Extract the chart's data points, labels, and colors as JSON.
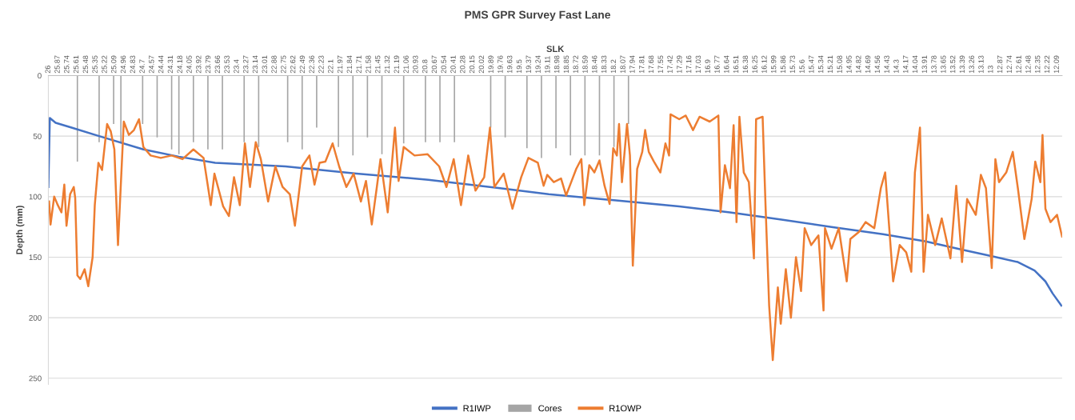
{
  "chart_data": {
    "type": "line",
    "title": "PMS GPR Survey Fast Lane",
    "xlabel": "SLK",
    "ylabel": "Depth (mm)",
    "xlim": [
      26,
      12.02
    ],
    "ylim": [
      255,
      0
    ],
    "yticks": [
      0,
      50,
      100,
      150,
      200,
      250
    ],
    "xticks": [
      26,
      25.87,
      25.74,
      25.61,
      25.48,
      25.35,
      25.22,
      25.09,
      24.96,
      24.83,
      24.7,
      24.57,
      24.44,
      24.31,
      24.18,
      24.05,
      23.92,
      23.79,
      23.66,
      23.53,
      23.4,
      23.27,
      23.14,
      23.01,
      22.88,
      22.75,
      22.62,
      22.49,
      22.36,
      22.23,
      22.1,
      21.97,
      21.84,
      21.71,
      21.58,
      21.45,
      21.32,
      21.19,
      21.06,
      20.93,
      20.8,
      20.67,
      20.54,
      20.41,
      20.28,
      20.15,
      20.02,
      19.89,
      19.76,
      19.63,
      19.5,
      19.37,
      19.24,
      19.11,
      18.98,
      18.85,
      18.72,
      18.59,
      18.46,
      18.33,
      18.2,
      18.07,
      17.94,
      17.81,
      17.68,
      17.55,
      17.42,
      17.29,
      17.16,
      17.03,
      16.9,
      16.77,
      16.64,
      16.51,
      16.38,
      16.25,
      16.12,
      15.99,
      15.86,
      15.73,
      15.6,
      15.47,
      15.34,
      15.21,
      15.08,
      14.95,
      14.82,
      14.69,
      14.56,
      14.43,
      14.3,
      14.17,
      14.04,
      13.91,
      13.78,
      13.65,
      13.52,
      13.39,
      13.26,
      13.13,
      13,
      12.87,
      12.74,
      12.61,
      12.48,
      12.35,
      12.22,
      12.09
    ],
    "grid": "y",
    "legend": "bottom",
    "series": [
      {
        "name": "R1IWP",
        "color": "#4472c4",
        "x": [
          26.0,
          25.98,
          25.9,
          25.68,
          25.3,
          24.69,
          24.2,
          23.7,
          22.73,
          21.75,
          20.76,
          19.77,
          19.1,
          18.2,
          17.3,
          16.6,
          15.89,
          15.2,
          14.49,
          13.9,
          13.38,
          13.0,
          12.63,
          12.4,
          12.25,
          12.15,
          12.03
        ],
        "values": [
          92,
          35,
          39,
          43,
          50,
          61,
          67,
          72,
          75,
          81,
          86,
          93,
          98,
          103,
          108,
          113,
          119,
          125,
          131,
          137,
          144,
          149,
          154,
          161,
          170,
          180,
          190
        ]
      },
      {
        "name": "Cores",
        "type": "bar",
        "color": "#a5a5a5",
        "x": [
          25.6,
          25.3,
          25.1,
          25.0,
          24.7,
          24.5,
          24.3,
          24.2,
          24.0,
          23.8,
          23.6,
          23.3,
          23.1,
          22.7,
          22.5,
          22.3,
          22.0,
          21.8,
          21.6,
          21.4,
          21.1,
          20.8,
          20.6,
          20.4,
          19.9,
          19.7,
          19.4,
          19.2,
          19.0,
          18.8,
          18.6,
          18.4,
          18.2,
          18.0
        ],
        "values": [
          71,
          55,
          40,
          55,
          40,
          51,
          61,
          65,
          55,
          61,
          61,
          55,
          59,
          55,
          61,
          43,
          59,
          66,
          51,
          65,
          56,
          55,
          55,
          55,
          43,
          51,
          60,
          68,
          60,
          66,
          66,
          66,
          59,
          40
        ]
      },
      {
        "name": "R1OWP",
        "color": "#ed7d31",
        "x": [
          25.99,
          25.97,
          25.92,
          25.87,
          25.82,
          25.78,
          25.75,
          25.7,
          25.65,
          25.63,
          25.6,
          25.56,
          25.5,
          25.45,
          25.39,
          25.36,
          25.31,
          25.26,
          25.19,
          25.14,
          25.09,
          25.04,
          24.96,
          24.89,
          24.82,
          24.75,
          24.69,
          24.59,
          24.45,
          24.3,
          24.15,
          24.0,
          23.86,
          23.76,
          23.71,
          23.59,
          23.51,
          23.44,
          23.36,
          23.29,
          23.22,
          23.14,
          23.07,
          22.97,
          22.87,
          22.77,
          22.67,
          22.6,
          22.5,
          22.4,
          22.33,
          22.26,
          22.18,
          22.08,
          21.99,
          21.89,
          21.79,
          21.69,
          21.62,
          21.54,
          21.47,
          21.42,
          21.32,
          21.22,
          21.17,
          21.1,
          20.95,
          20.77,
          20.61,
          20.51,
          20.41,
          20.31,
          20.21,
          20.11,
          19.99,
          19.91,
          19.85,
          19.72,
          19.6,
          19.48,
          19.38,
          19.25,
          19.17,
          19.12,
          19.03,
          18.93,
          18.86,
          18.79,
          18.72,
          18.65,
          18.61,
          18.54,
          18.47,
          18.4,
          18.33,
          18.26,
          18.21,
          18.16,
          18.13,
          18.09,
          18.02,
          17.98,
          17.94,
          17.88,
          17.81,
          17.77,
          17.72,
          17.65,
          17.56,
          17.49,
          17.44,
          17.42,
          17.3,
          17.21,
          17.11,
          17.02,
          16.88,
          16.76,
          16.73,
          16.67,
          16.6,
          16.55,
          16.51,
          16.47,
          16.41,
          16.34,
          16.27,
          16.24,
          16.15,
          16.11,
          16.06,
          16.01,
          15.94,
          15.9,
          15.83,
          15.76,
          15.69,
          15.62,
          15.57,
          15.48,
          15.38,
          15.31,
          15.29,
          15.2,
          15.1,
          14.99,
          14.94,
          14.82,
          14.73,
          14.61,
          14.52,
          14.46,
          14.4,
          14.35,
          14.26,
          14.17,
          14.1,
          14.05,
          13.98,
          13.93,
          13.87,
          13.77,
          13.68,
          13.56,
          13.48,
          13.4,
          13.33,
          13.21,
          13.14,
          13.07,
          12.99,
          12.94,
          12.89,
          12.79,
          12.7,
          12.63,
          12.54,
          12.44,
          12.39,
          12.32,
          12.29,
          12.25,
          12.18,
          12.09,
          12.02
        ],
        "values": [
          104,
          123,
          100,
          107,
          113,
          90,
          124,
          98,
          92,
          101,
          165,
          168,
          160,
          174,
          150,
          107,
          72,
          78,
          40,
          46,
          61,
          140,
          38,
          49,
          45,
          36,
          59,
          66,
          68,
          66,
          69,
          61,
          68,
          107,
          81,
          108,
          116,
          84,
          107,
          56,
          92,
          55,
          69,
          104,
          75,
          92,
          98,
          124,
          75,
          66,
          90,
          72,
          71,
          56,
          75,
          92,
          81,
          104,
          87,
          123,
          92,
          69,
          113,
          43,
          87,
          59,
          66,
          65,
          75,
          92,
          69,
          107,
          66,
          95,
          84,
          43,
          92,
          81,
          110,
          84,
          68,
          72,
          91,
          82,
          88,
          85,
          99,
          88,
          77,
          69,
          107,
          74,
          80,
          70,
          91,
          106,
          60,
          66,
          40,
          88,
          40,
          66,
          157,
          77,
          63,
          45,
          63,
          71,
          80,
          56,
          66,
          32,
          36,
          33,
          45,
          34,
          38,
          33,
          113,
          74,
          93,
          41,
          121,
          34,
          80,
          88,
          151,
          36,
          34,
          107,
          190,
          235,
          175,
          205,
          160,
          200,
          150,
          178,
          126,
          140,
          132,
          194,
          126,
          143,
          126,
          170,
          135,
          129,
          121,
          126,
          93,
          80,
          129,
          170,
          140,
          146,
          162,
          80,
          43,
          162,
          115,
          140,
          118,
          151,
          91,
          154,
          102,
          115,
          82,
          93,
          159,
          69,
          88,
          80,
          63,
          93,
          135,
          102,
          71,
          88,
          49,
          110,
          121,
          115,
          133
        ]
      }
    ]
  }
}
